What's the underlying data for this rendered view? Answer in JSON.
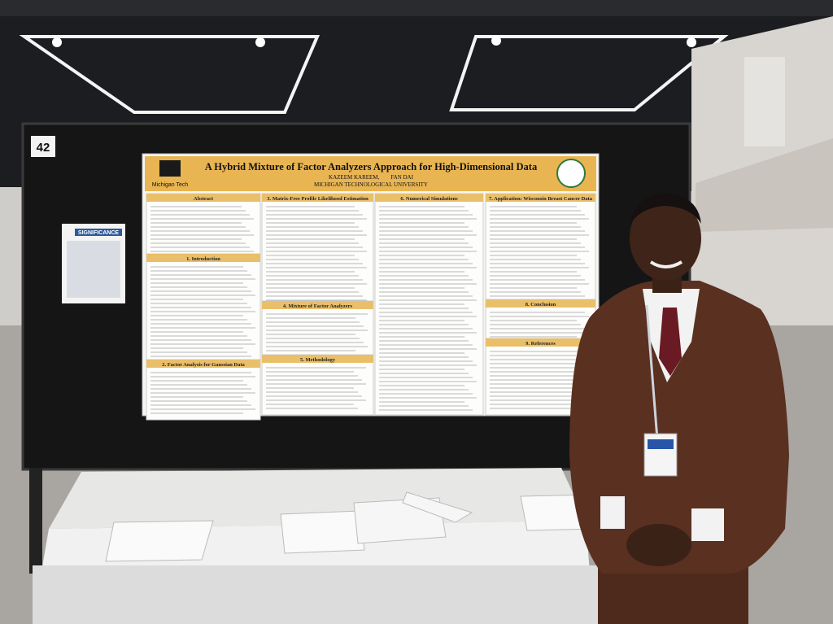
{
  "booth_number": "42",
  "flyer": {
    "title": "SIGNIFICANCE"
  },
  "poster": {
    "logo_text": "Michigan Tech",
    "title": "A Hybrid Mixture of Factor Analyzers Approach for High-Dimensional Data",
    "authors": "KAZEEM KAREEM,        FAN DAI",
    "affiliation": "MICHIGAN TECHNOLOGICAL UNIVERSITY",
    "sections": [
      "Abstract",
      "1. Introduction",
      "2. Factor Analysis for Gaussian Data",
      "3. Matrix-Free Profile Likelihood Estimation",
      "4. Mixture of Factor Analyzers",
      "5. Methodology",
      "6. Numerical Simulations",
      "7. Application: Wisconsin Breast Cancer Data",
      "8. Conclusion",
      "9. References"
    ]
  }
}
